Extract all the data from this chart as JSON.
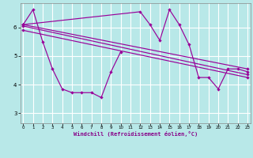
{
  "xlabel": "Windchill (Refroidissement éolien,°C)",
  "background_color": "#b8e8e8",
  "grid_color": "#ffffff",
  "line_color": "#990099",
  "x_ticks": [
    0,
    1,
    2,
    3,
    4,
    5,
    6,
    7,
    8,
    9,
    10,
    11,
    12,
    13,
    14,
    15,
    16,
    17,
    18,
    19,
    20,
    21,
    22,
    23
  ],
  "y_ticks": [
    3,
    4,
    5,
    6
  ],
  "xlim": [
    -0.3,
    23.3
  ],
  "ylim": [
    2.65,
    6.85
  ],
  "line1_x": [
    0,
    1,
    2,
    3,
    4,
    5,
    6,
    7,
    8,
    9,
    10
  ],
  "line1_y": [
    6.1,
    6.62,
    5.5,
    4.55,
    3.85,
    3.72,
    3.72,
    3.72,
    3.55,
    4.45,
    5.15
  ],
  "line2_x": [
    0,
    12,
    13,
    14,
    15,
    16,
    17,
    18,
    19,
    20,
    21,
    22,
    23
  ],
  "line2_y": [
    6.1,
    6.55,
    6.1,
    5.55,
    6.62,
    6.1,
    5.4,
    4.25,
    4.25,
    3.85,
    4.55,
    4.55,
    4.45
  ],
  "line3_x": [
    0,
    23
  ],
  "line3_y": [
    6.1,
    4.55
  ],
  "line4_x": [
    0,
    23
  ],
  "line4_y": [
    6.05,
    4.35
  ],
  "line5_x": [
    0,
    23
  ],
  "line5_y": [
    5.9,
    4.25
  ]
}
